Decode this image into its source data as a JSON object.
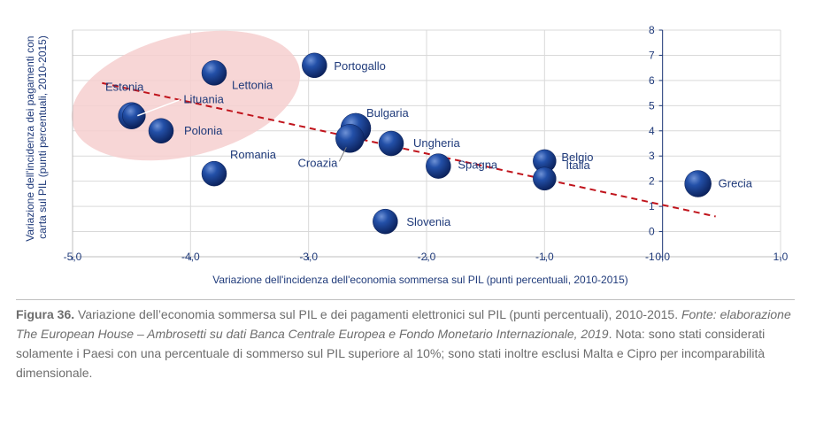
{
  "chart_data": {
    "type": "scatter",
    "xlabel": "Variazione dell'incidenza dell'economia sommersa sul PIL (punti percentuali, 2010-2015)",
    "ylabel": "Variazione dell'incidenza dei pagamenti con carta sul PIL (punti percentuali, 2010-2015)",
    "xlim": [
      -5.0,
      1.0
    ],
    "ylim": [
      -1,
      8
    ],
    "x_ticks": [
      "-5,0",
      "-4,0",
      "-3,0",
      "-2,0",
      "-1,0",
      "0,0",
      "1,0"
    ],
    "y_ticks": [
      "-1",
      "0",
      "1",
      "2",
      "3",
      "4",
      "5",
      "6",
      "7",
      "8"
    ],
    "grid": true,
    "points": [
      {
        "label": "Estonia",
        "x": -4.5,
        "y": 4.6
      },
      {
        "label": "Lettonia",
        "x": -3.8,
        "y": 6.3
      },
      {
        "label": "Portogallo",
        "x": -2.95,
        "y": 6.6
      },
      {
        "label": "Lituania",
        "x": -4.48,
        "y": 4.6
      },
      {
        "label": "Polonia",
        "x": -4.25,
        "y": 4.0
      },
      {
        "label": "Romania",
        "x": -3.8,
        "y": 2.3
      },
      {
        "label": "Bulgaria",
        "x": -2.6,
        "y": 4.1
      },
      {
        "label": "Croazia",
        "x": -2.65,
        "y": 3.7
      },
      {
        "label": "Ungheria",
        "x": -2.3,
        "y": 3.5
      },
      {
        "label": "Spagna",
        "x": -1.9,
        "y": 2.6
      },
      {
        "label": "Belgio",
        "x": -1.0,
        "y": 2.8
      },
      {
        "label": "Italia",
        "x": -1.0,
        "y": 2.1
      },
      {
        "label": "Grecia",
        "x": 0.3,
        "y": 1.9
      },
      {
        "label": "Slovenia",
        "x": -2.35,
        "y": 0.4
      }
    ],
    "trendline": {
      "x": [
        -4.75,
        0.45
      ],
      "y": [
        5.9,
        0.6
      ],
      "color": "#c0141c",
      "style": "dashed"
    },
    "highlight_color": "#f5c6c6",
    "point_color": "#1b3f8f"
  },
  "caption": {
    "figure_label": "Figura 36.",
    "text": " Variazione dell’economia sommersa sul PIL e dei pagamenti elettronici sul PIL (punti percentuali), 2010-2015. ",
    "source_italic": "Fonte: elaborazione The European House – Ambrosetti su dati Banca Centrale Europea e Fondo Monetario Internazionale, 2019",
    "note": ". Nota: sono stati considerati solamente i Paesi con una percentuale di sommerso sul PIL superiore al 10%; sono stati inoltre esclusi Malta e Cipro per incomparabilità dimensionale."
  }
}
